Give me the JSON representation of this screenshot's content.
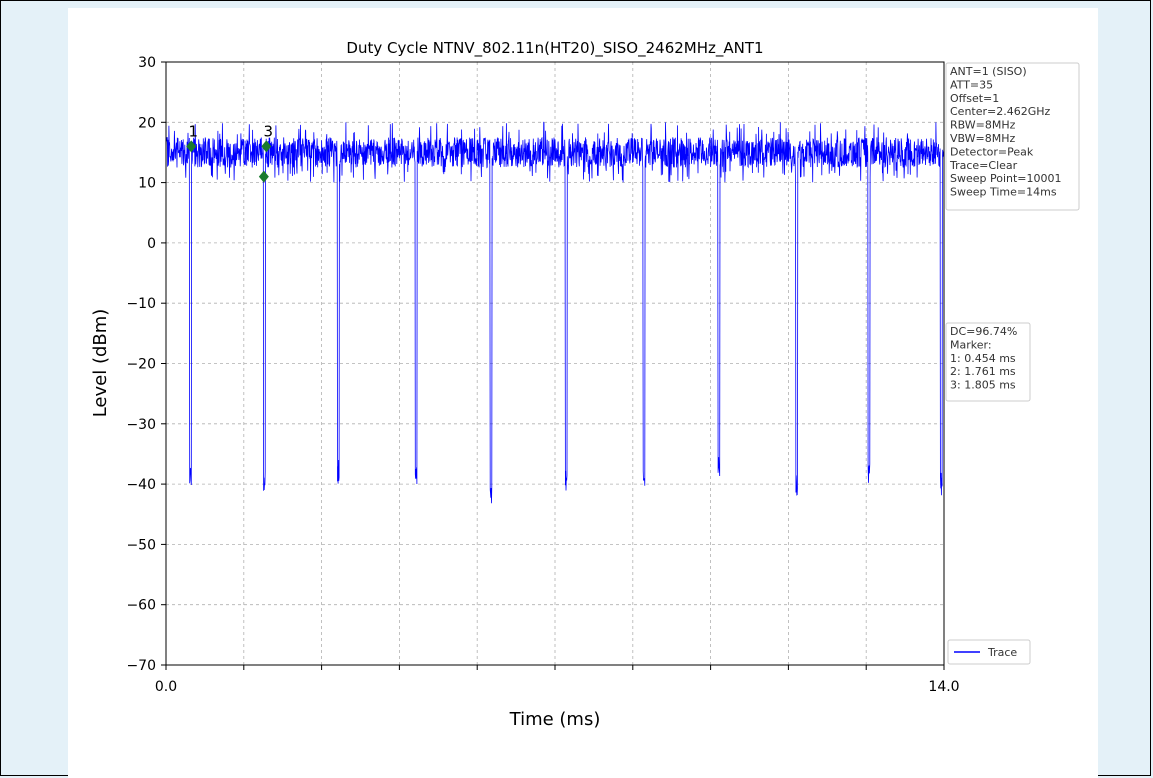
{
  "chart_data": {
    "type": "line",
    "title": "Duty Cycle NTNV_802.11n(HT20)_SISO_2462MHz_ANT1",
    "xlabel": "Time (ms)",
    "ylabel": "Level (dBm)",
    "xlim": [
      0.0,
      14.0
    ],
    "ylim": [
      -70,
      30
    ],
    "x_tick_labels": [
      "0.0",
      "14.0"
    ],
    "y_ticks": [
      30,
      20,
      10,
      0,
      -10,
      -20,
      -30,
      -40,
      -50,
      -60,
      -70
    ],
    "y_tick_labels": [
      "30",
      "20",
      "10",
      "0",
      "−10",
      "−20",
      "−30",
      "−40",
      "−50",
      "−60",
      "−70"
    ],
    "grid": true,
    "series": [
      {
        "name": "Trace",
        "color": "#0000ff",
        "burst_level_dbm": [
          11,
          18
        ],
        "gap_floor_dbm": -40,
        "gap_times_ms": [
          0.44,
          1.77,
          3.1,
          4.5,
          5.85,
          7.2,
          8.6,
          9.95,
          11.35,
          12.65,
          13.95
        ],
        "gap_minima_dbm": [
          -40.5,
          -41.5,
          -40,
          -40,
          -43.5,
          -41.5,
          -40.5,
          -39.5,
          -42.5,
          -40,
          -42
        ]
      }
    ],
    "markers": [
      {
        "label": "1",
        "x": 0.454,
        "y": 16
      },
      {
        "label": "2",
        "x": 1.761,
        "y": 11
      },
      {
        "label": "3",
        "x": 1.805,
        "y": 16
      }
    ],
    "marker_color": "#1a7a2e",
    "legend": {
      "position": "bottom-right",
      "entries": [
        "Trace"
      ]
    },
    "info_box": [
      "ANT=1 (SISO)",
      "ATT=35",
      "Offset=1",
      "Center=2.462GHz",
      "RBW=8MHz",
      "VBW=8MHz",
      "Detector=Peak",
      "Trace=Clear",
      "Sweep Point=10001",
      "Sweep Time=14ms"
    ],
    "result_box": [
      "DC=96.74%",
      "Marker:",
      "1: 0.454 ms",
      "2: 1.761 ms",
      "3: 1.805 ms"
    ]
  }
}
